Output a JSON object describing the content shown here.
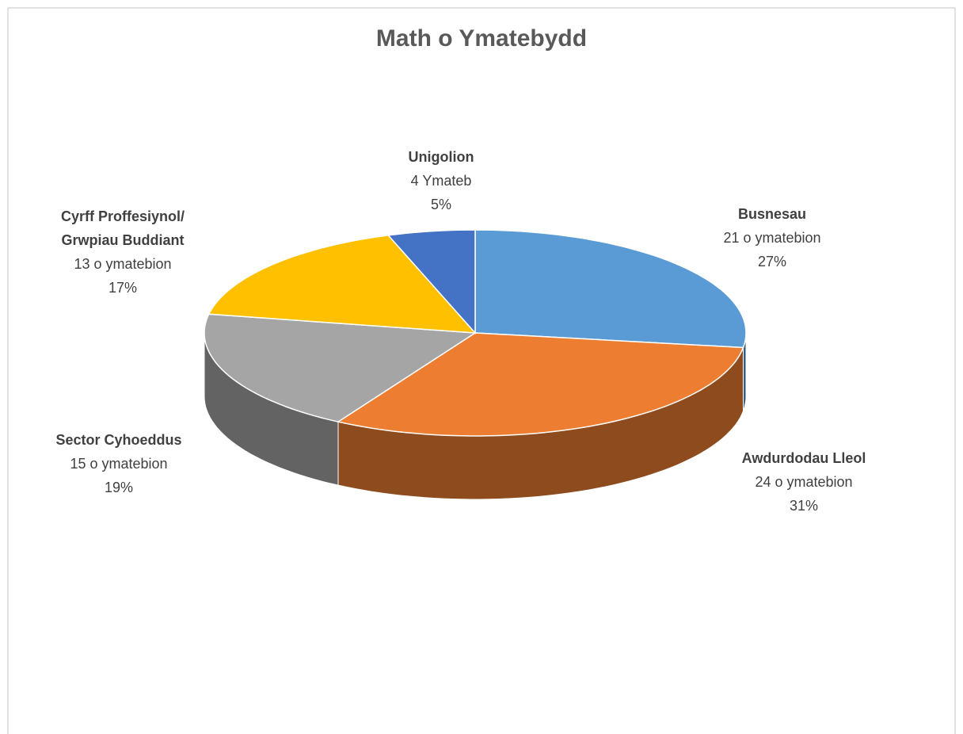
{
  "chart_data": {
    "type": "pie",
    "title": "Math o Ymatebydd",
    "categories": [
      "Busnesau",
      "Awdurdodau Lleol",
      "Sector Cyhoeddus",
      "Cyrff Proffesiynol/ Grwpiau Buddiant",
      "Unigolion"
    ],
    "values": [
      21,
      24,
      15,
      13,
      4
    ],
    "value_labels": [
      "21 o ymatebion",
      "24 o ymatebion",
      "15 o ymatebion",
      "13 o ymatebion",
      "4 Ymateb"
    ],
    "percentages": [
      27,
      31,
      19,
      17,
      5
    ],
    "percent_labels": [
      "27%",
      "31%",
      "19%",
      "17%",
      "5%"
    ],
    "colors": [
      "#5b9bd5",
      "#ed7d31",
      "#a5a5a5",
      "#ffc000",
      "#4472c4"
    ],
    "three_d": true
  }
}
